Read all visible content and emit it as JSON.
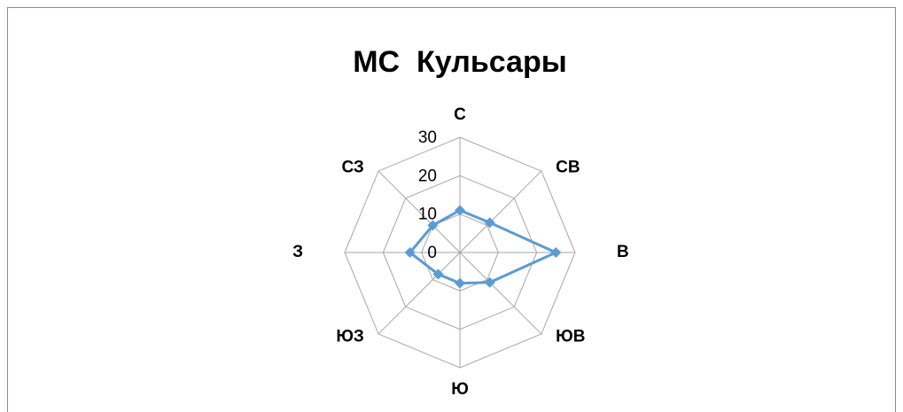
{
  "chart_data": {
    "type": "radar",
    "title": "МС  Кульсары",
    "categories": [
      "С",
      "СВ",
      "В",
      "ЮВ",
      "Ю",
      "ЮЗ",
      "З",
      "СЗ"
    ],
    "values": [
      11,
      11,
      25,
      11,
      8,
      8,
      13,
      10
    ],
    "color": "#5b9bd5",
    "ylim": [
      0,
      30
    ],
    "yticks": [
      0,
      10,
      20,
      30
    ],
    "grid": true
  }
}
